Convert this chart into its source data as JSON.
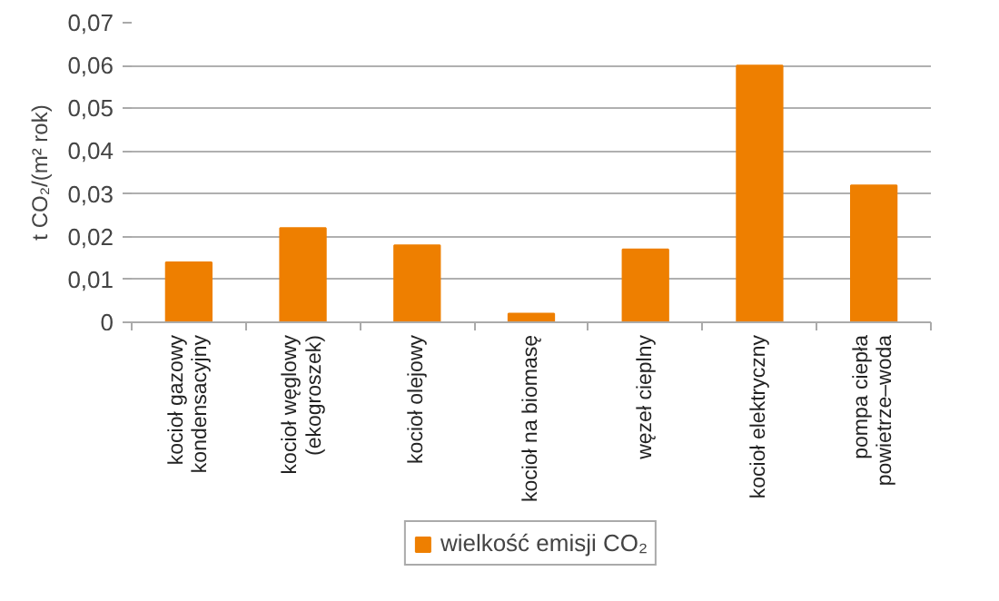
{
  "chart_data": {
    "type": "bar",
    "ylabel": "t CO₂/(m² rok)",
    "categories": [
      "kocioł gazowy\nkondensacyjny",
      "kocioł węglowy\n(ekogroszek)",
      "kocioł olejowy",
      "kocioł na biomasę",
      "węzeł cieplny",
      "kocioł elektryczny",
      "pompa ciepła\npowietrze–woda"
    ],
    "series": [
      {
        "name": "wielkość emisji CO₂",
        "color": "#ee7f00",
        "values": [
          0.014,
          0.022,
          0.018,
          0.002,
          0.017,
          0.06,
          0.032
        ]
      }
    ],
    "ylim": [
      0,
      0.07
    ],
    "yticks": [
      {
        "value": 0,
        "label": "0"
      },
      {
        "value": 0.01,
        "label": "0,01"
      },
      {
        "value": 0.02,
        "label": "0,02"
      },
      {
        "value": 0.03,
        "label": "0,03"
      },
      {
        "value": 0.04,
        "label": "0,04"
      },
      {
        "value": 0.05,
        "label": "0,05"
      },
      {
        "value": 0.06,
        "label": "0,06"
      },
      {
        "value": 0.07,
        "label": "0,07"
      }
    ],
    "grid": "y",
    "legend": "bottom"
  }
}
